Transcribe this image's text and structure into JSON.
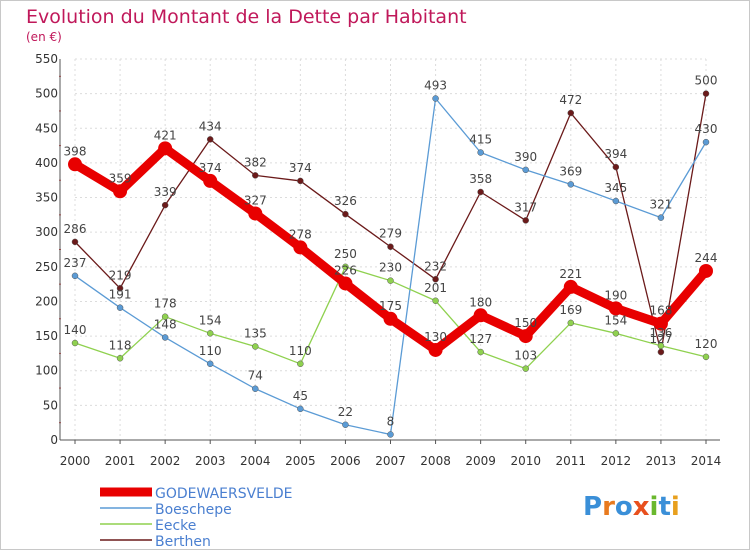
{
  "chart_data": {
    "type": "line",
    "title": "Evolution du Montant de la Dette par Habitant",
    "subtitle": "(en €)",
    "x": [
      "2000",
      "2001",
      "2002",
      "2003",
      "2004",
      "2005",
      "2006",
      "2007",
      "2008",
      "2009",
      "2010",
      "2011",
      "2012",
      "2013",
      "2014"
    ],
    "ylim": [
      0,
      550
    ],
    "yticks": [
      "0",
      "50",
      "100",
      "150",
      "200",
      "250",
      "300",
      "350",
      "400",
      "450",
      "500",
      "550"
    ],
    "grid": true,
    "legend_position": "bottom-left",
    "series": [
      {
        "name": "GODEWAERSVELDE",
        "color": "#e80000",
        "values": [
          398,
          359,
          421,
          374,
          327,
          278,
          226,
          175,
          130,
          180,
          150,
          221,
          190,
          168,
          244
        ],
        "labels": [
          "398",
          "359",
          "421",
          "374",
          "327",
          "278",
          "226",
          "175",
          "130",
          "180",
          "150",
          "221",
          "190",
          "168",
          "244"
        ]
      },
      {
        "name": "Boeschepe",
        "color": "#5b9bd5",
        "values": [
          237,
          191,
          148,
          110,
          74,
          45,
          22,
          8,
          493,
          415,
          390,
          369,
          345,
          321,
          430
        ],
        "labels": [
          "237",
          "191",
          "148",
          "110",
          "74",
          "45",
          "22",
          "8",
          "493",
          "415",
          "390",
          "369",
          "345",
          "321",
          "430"
        ]
      },
      {
        "name": "Eecke",
        "color": "#8fd14f",
        "values": [
          140,
          118,
          178,
          154,
          135,
          110,
          250,
          230,
          201,
          127,
          103,
          169,
          154,
          136,
          120
        ],
        "labels": [
          "140",
          "118",
          "178",
          "154",
          "135",
          "110",
          "250",
          "230",
          "201",
          "127",
          "103",
          "169",
          "154",
          "136",
          "120"
        ]
      },
      {
        "name": "Berthen",
        "color": "#6b1a1a",
        "values": [
          286,
          219,
          339,
          434,
          382,
          374,
          326,
          279,
          232,
          358,
          317,
          472,
          394,
          127,
          500
        ],
        "labels": [
          "286",
          "219",
          "339",
          "434",
          "382",
          "374",
          "326",
          "279",
          "232",
          "358",
          "317",
          "472",
          "394",
          "127",
          "500"
        ]
      }
    ]
  },
  "brand": {
    "text": "Proxiti"
  }
}
